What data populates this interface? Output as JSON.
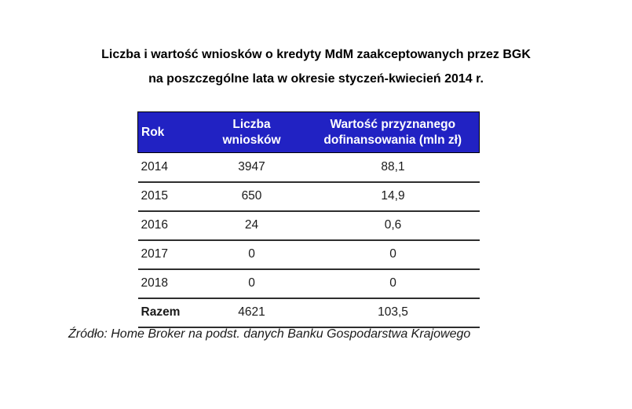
{
  "ui": {
    "title": {
      "line1": "Liczba i wartość wniosków o kredyty MdM zaakceptowanych przez BGK",
      "line2": "na poszczególne lata w okresie styczeń-kwiecień 2014 r."
    },
    "source": "Źródło: Home Broker na podst. danych Banku Gospodarstwa Krajowego",
    "colors": {
      "header_background": "#2122c3",
      "header_text": "#ffffff",
      "row_separator": "#2e2e2e",
      "body_text": "#1a1a1a",
      "page_background": "#ffffff"
    }
  },
  "chart_data": {
    "type": "table",
    "title": "Liczba i wartość wniosków o kredyty MdM zaakceptowanych przez BGK na poszczególne lata w okresie styczeń-kwiecień 2014 r.",
    "columns": [
      "Rok",
      "Liczba wniosków",
      "Wartość przyznanego dofinansowania (mln zł)"
    ],
    "rows": [
      [
        "2014",
        "3947",
        "88,1"
      ],
      [
        "2015",
        "650",
        "14,9"
      ],
      [
        "2016",
        "24",
        "0,6"
      ],
      [
        "2017",
        "0",
        "0"
      ],
      [
        "2018",
        "0",
        "0"
      ],
      [
        "Razem",
        "4621",
        "103,5"
      ]
    ],
    "years": [
      2014,
      2015,
      2016,
      2017,
      2018
    ],
    "applications": [
      3947,
      650,
      24,
      0,
      0
    ],
    "funding_mln_zl": [
      88.1,
      14.9,
      0.6,
      0,
      0
    ],
    "total": {
      "label": "Razem",
      "applications": 4621,
      "funding_mln_zl": 103.5
    },
    "source": "Źródło: Home Broker na podst. danych Banku Gospodarstwa Krajowego",
    "legend_position": "none",
    "grid": "horizontal-rules"
  }
}
